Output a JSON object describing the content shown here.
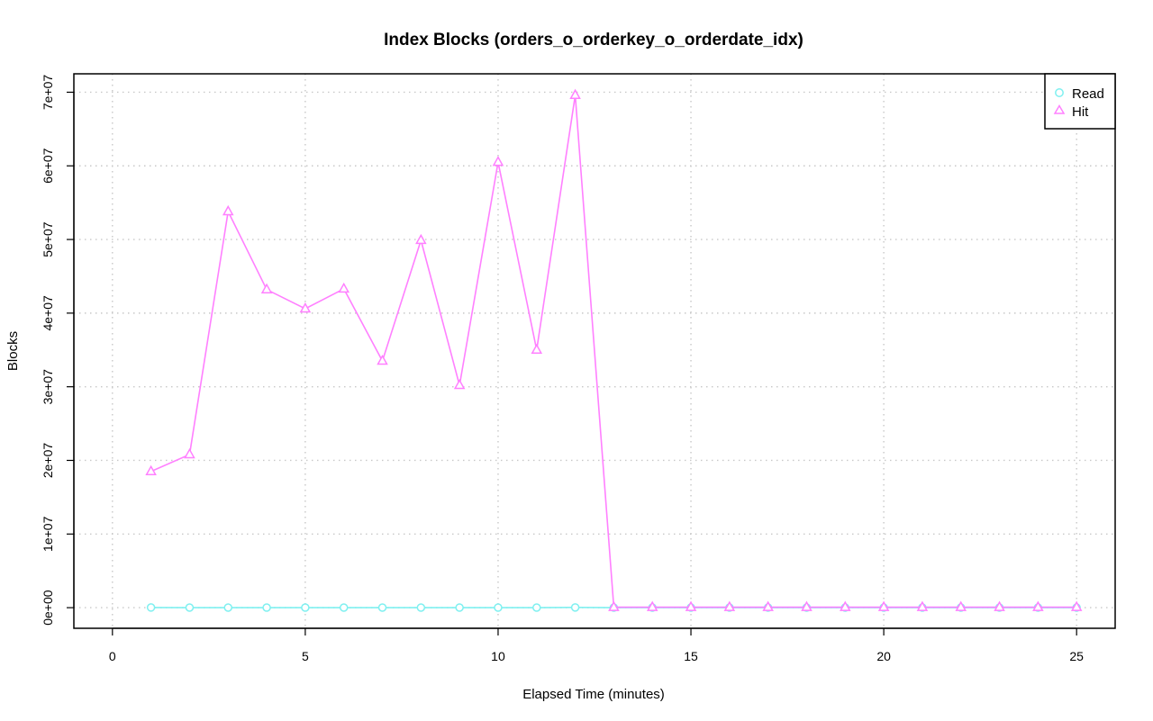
{
  "chart_data": {
    "type": "line",
    "title": "Index Blocks (orders_o_orderkey_o_orderdate_idx)",
    "xlabel": "Elapsed Time (minutes)",
    "ylabel": "Blocks",
    "xlim": [
      -1,
      26
    ],
    "ylim": [
      -2800000,
      72500000
    ],
    "xticks": [
      0,
      5,
      10,
      15,
      20,
      25
    ],
    "xtick_labels": [
      "0",
      "5",
      "10",
      "15",
      "20",
      "25"
    ],
    "yticks": [
      0,
      10000000,
      20000000,
      30000000,
      40000000,
      50000000,
      60000000,
      70000000
    ],
    "ytick_labels": [
      "0e+00",
      "1e+07",
      "2e+07",
      "3e+07",
      "4e+07",
      "5e+07",
      "6e+07",
      "7e+07"
    ],
    "grid": true,
    "legend_position": "top-right",
    "x": [
      1,
      2,
      3,
      4,
      5,
      6,
      7,
      8,
      9,
      10,
      11,
      12,
      13,
      14,
      15,
      16,
      17,
      18,
      19,
      20,
      21,
      22,
      23,
      24,
      25
    ],
    "series": [
      {
        "name": "Read",
        "color": "#7ff0f0",
        "marker": "circle",
        "values": [
          25000,
          10000,
          10000,
          10000,
          10000,
          10000,
          10000,
          10000,
          10000,
          10000,
          10000,
          30000,
          10000,
          10000,
          10000,
          10000,
          10000,
          10000,
          10000,
          10000,
          10000,
          10000,
          10000,
          10000,
          10000
        ]
      },
      {
        "name": "Hit",
        "color": "#ff80ff",
        "marker": "triangle",
        "values": [
          18500000,
          20800000,
          53800000,
          43200000,
          40600000,
          43300000,
          33500000,
          49900000,
          30200000,
          60500000,
          35000000,
          69600000,
          60000,
          60000,
          60000,
          60000,
          60000,
          60000,
          60000,
          60000,
          60000,
          60000,
          60000,
          60000,
          60000
        ]
      }
    ]
  }
}
